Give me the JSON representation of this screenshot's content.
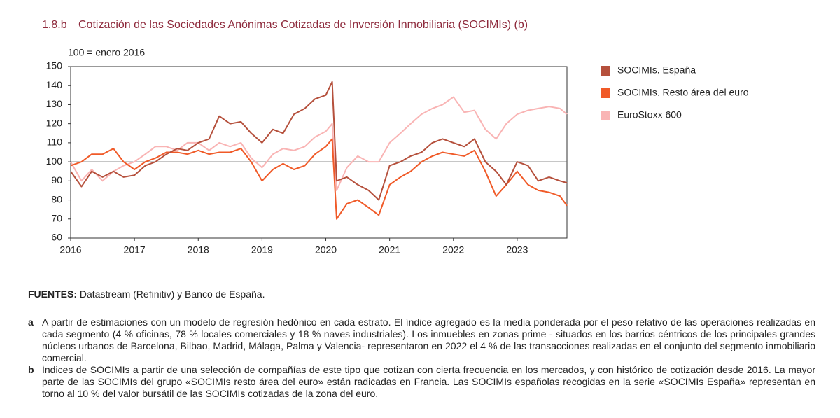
{
  "chart_data": {
    "type": "line",
    "number": "1.8.b",
    "title": "Cotización de las Sociedades Anónimas Cotizadas de Inversión Inmobiliaria (SOCIMIs) (b)",
    "y_label": "100 = enero 2016",
    "x": [
      2016,
      2016.17,
      2016.33,
      2016.5,
      2016.67,
      2016.83,
      2017,
      2017.17,
      2017.33,
      2017.5,
      2017.67,
      2017.83,
      2018,
      2018.17,
      2018.33,
      2018.5,
      2018.67,
      2018.83,
      2019,
      2019.17,
      2019.33,
      2019.5,
      2019.67,
      2019.83,
      2020,
      2020.1,
      2020.17,
      2020.33,
      2020.5,
      2020.67,
      2020.83,
      2021,
      2021.17,
      2021.33,
      2021.5,
      2021.67,
      2021.83,
      2022,
      2022.17,
      2022.33,
      2022.5,
      2022.67,
      2022.83,
      2023,
      2023.17,
      2023.33,
      2023.5,
      2023.67,
      2023.78
    ],
    "series": [
      {
        "name": "SOCIMIs. España",
        "color": "#b5503c",
        "values": [
          95,
          87,
          95,
          92,
          95,
          92,
          93,
          98,
          100,
          104,
          107,
          106,
          110,
          112,
          124,
          120,
          121,
          115,
          110,
          117,
          115,
          125,
          128,
          133,
          135,
          142,
          90,
          92,
          88,
          85,
          80,
          98,
          100,
          103,
          105,
          110,
          112,
          110,
          108,
          112,
          100,
          95,
          88,
          100,
          98,
          90,
          92,
          90,
          89
        ]
      },
      {
        "name": "SOCIMIs. Resto área del euro",
        "color": "#f05a28",
        "values": [
          98,
          100,
          104,
          104,
          107,
          100,
          96,
          100,
          102,
          105,
          105,
          104,
          106,
          104,
          105,
          105,
          107,
          100,
          90,
          96,
          99,
          96,
          98,
          104,
          108,
          112,
          70,
          78,
          80,
          76,
          72,
          88,
          92,
          95,
          100,
          103,
          105,
          104,
          103,
          106,
          95,
          82,
          88,
          95,
          88,
          85,
          84,
          82,
          77
        ]
      },
      {
        "name": "EuroStoxx 600",
        "color": "#f9b4b4",
        "values": [
          100,
          90,
          96,
          90,
          95,
          98,
          100,
          104,
          108,
          108,
          106,
          110,
          110,
          106,
          110,
          108,
          110,
          102,
          97,
          104,
          107,
          106,
          108,
          113,
          116,
          120,
          85,
          97,
          103,
          100,
          100,
          110,
          115,
          120,
          125,
          128,
          130,
          134,
          126,
          127,
          117,
          112,
          120,
          125,
          127,
          128,
          129,
          128,
          125
        ]
      }
    ],
    "xlim": [
      2016,
      2023.78
    ],
    "xticks": [
      2016,
      2017,
      2018,
      2019,
      2020,
      2021,
      2022,
      2023
    ],
    "ylim": [
      60,
      150
    ],
    "yticks": [
      60,
      70,
      80,
      90,
      100,
      110,
      120,
      130,
      140,
      150
    ],
    "hline": 100,
    "legend": "right"
  },
  "sources": {
    "label": "FUENTES:",
    "text": "Datastream (Refinitiv) y Banco de España."
  },
  "notes": [
    {
      "marker": "a",
      "text": "A partir de estimaciones con un modelo de regresión hedónico en cada estrato. El índice agregado es la media ponderada por el peso relativo de las operaciones realizadas en cada segmento (4 % oficinas, 78 % locales comerciales y 18 % naves industriales). Los inmuebles en zonas prime - situados en los barrios céntricos de los principales grandes núcleos urbanos de Barcelona, Bilbao, Madrid, Málaga, Palma y Valencia- representaron en 2022 el 4 % de las transacciones realizadas en el conjunto del segmento inmobiliario comercial."
    },
    {
      "marker": "b",
      "text": "Índices de SOCIMIs a partir de una selección de compañías de este tipo que cotizan con cierta frecuencia en los mercados, y con histórico de cotización desde 2016. La mayor parte de las SOCIMIs del grupo «SOCIMIs resto área del euro» están radicadas en Francia. Las SOCIMIs españolas recogidas en la serie «SOCIMIs España» representan en torno al 10 % del valor bursátil de las SOCIMIs cotizadas de la zona del euro."
    }
  ]
}
